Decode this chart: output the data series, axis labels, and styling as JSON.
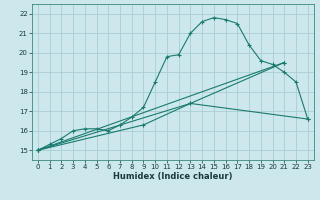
{
  "title": "",
  "xlabel": "Humidex (Indice chaleur)",
  "ylabel": "",
  "xlim": [
    -0.5,
    23.5
  ],
  "ylim": [
    14.5,
    22.5
  ],
  "yticks": [
    15,
    16,
    17,
    18,
    19,
    20,
    21,
    22
  ],
  "xticks": [
    0,
    1,
    2,
    3,
    4,
    5,
    6,
    7,
    8,
    9,
    10,
    11,
    12,
    13,
    14,
    15,
    16,
    17,
    18,
    19,
    20,
    21,
    22,
    23
  ],
  "bg_color": "#cce8ec",
  "line_color": "#1a7a6e",
  "grid_color": "#aacdd4",
  "series": [
    {
      "x": [
        0,
        1,
        2,
        3,
        4,
        5,
        6,
        7,
        8,
        9,
        10,
        11,
        12,
        13,
        14,
        15,
        16,
        17,
        18,
        19,
        20,
        21,
        22,
        23
      ],
      "y": [
        15.0,
        15.3,
        15.6,
        16.0,
        16.1,
        16.1,
        16.0,
        16.3,
        16.7,
        17.2,
        18.5,
        19.8,
        19.9,
        21.0,
        21.6,
        21.8,
        21.7,
        21.5,
        20.4,
        19.6,
        19.4,
        19.0,
        18.5,
        16.6
      ]
    },
    {
      "x": [
        0,
        21
      ],
      "y": [
        15.0,
        19.5
      ]
    },
    {
      "x": [
        0,
        13,
        23
      ],
      "y": [
        15.0,
        17.4,
        16.6
      ]
    },
    {
      "x": [
        0,
        9,
        13,
        21
      ],
      "y": [
        15.0,
        16.3,
        17.4,
        19.5
      ]
    }
  ]
}
